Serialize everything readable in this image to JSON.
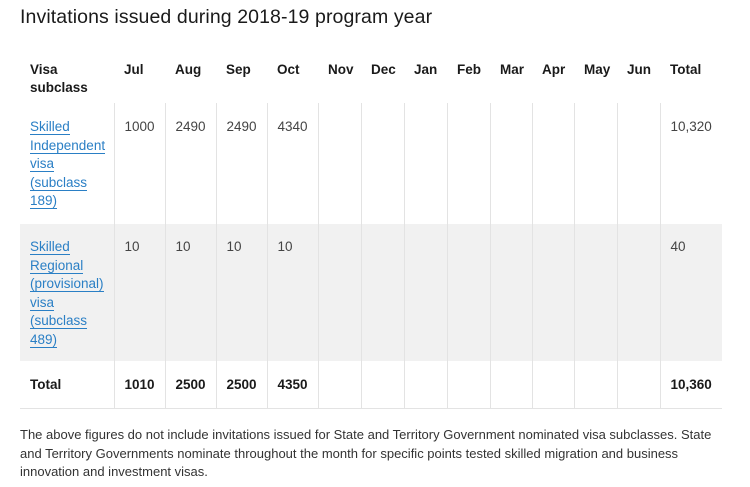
{
  "title": "Invitations issued during 2018-19 program year",
  "table": {
    "headers": [
      "Visa subclass",
      "Jul",
      "Aug",
      "Sep",
      "Oct",
      "Nov",
      "Dec",
      "Jan",
      "Feb",
      "Mar",
      "Apr",
      "May",
      "Jun",
      "Total"
    ],
    "rows": [
      {
        "visa_link_lines": [
          "Skilled",
          "Independent",
          "visa",
          "(subclass",
          "189)"
        ],
        "values": [
          "1000",
          "2490",
          "2490",
          "4340",
          "",
          "",
          "",
          "",
          "",
          "",
          "",
          "",
          "10,320"
        ]
      },
      {
        "visa_link_lines": [
          "Skilled",
          "Regional",
          "(provisional)",
          "visa",
          "(subclass",
          "489)"
        ],
        "values": [
          "10",
          "10",
          "10",
          "10",
          "",
          "",
          "",
          "",
          "",
          "",
          "",
          "",
          "40"
        ]
      }
    ],
    "total_row": {
      "label": "Total",
      "values": [
        "1010",
        "2500",
        "2500",
        "4350",
        "",
        "",
        "",
        "",
        "",
        "",
        "",
        "",
        "10,360"
      ]
    }
  },
  "note": "The above figures do not include invitations issued for State and Territory Government nominated visa subclasses. State and Territory Governments nominate throughout the month for specific points tested skilled migration and business innovation and investment visas."
}
